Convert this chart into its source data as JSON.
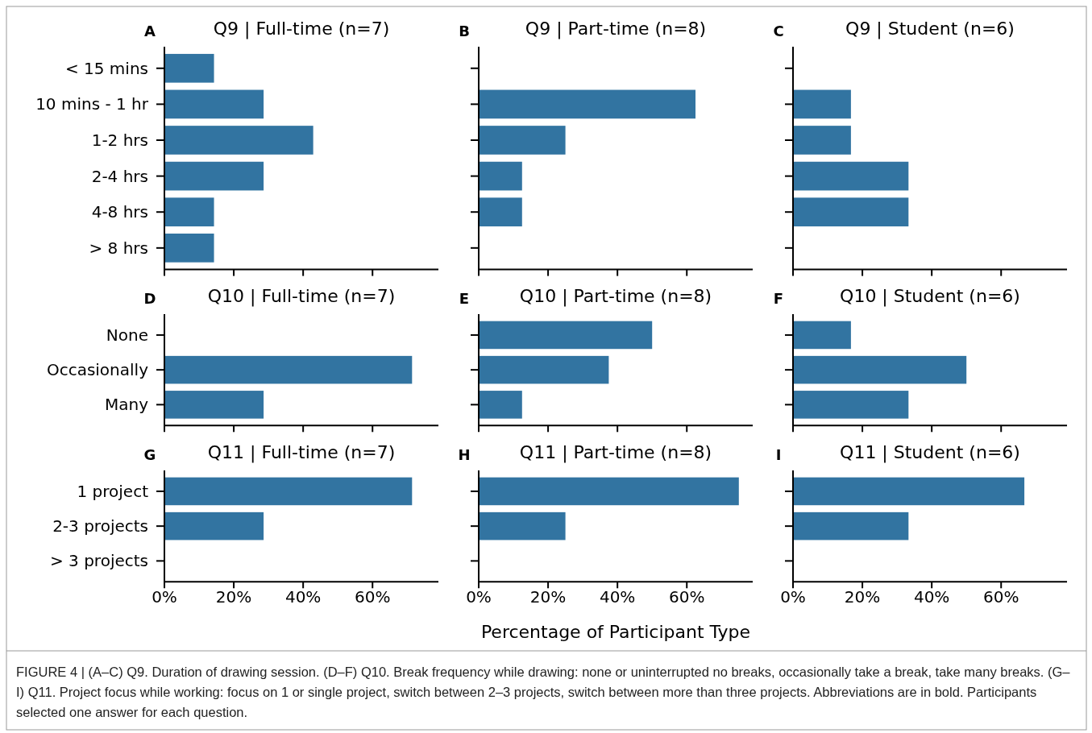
{
  "chart_data": [
    {
      "type": "bar",
      "orientation": "horizontal",
      "title": "Q9 | Full-time (n=7)",
      "annotations": [
        "A",
        "FIGURE 4 | (A–C) Q9. Duration of drawing session. (D–F) Q10. Break frequency while drawing: none or uninterrupted no breaks, occasionally take a break, take many breaks. (G–I) Q11. Project focus while working: focus on 1 or single project, switch between 2–3 projects, switch between more than three projects. Abbreviations are in bold. Participants selected one answer for each question."
      ],
      "categories": [
        "< 15 mins",
        "10 mins - 1 hr",
        "1-2 hrs",
        "2-4 hrs",
        "4-8 hrs",
        "> 8 hrs"
      ],
      "values": [
        14.3,
        28.6,
        42.9,
        28.6,
        14.3,
        14.3
      ],
      "color": "#3274a1",
      "xlim": [
        0,
        79
      ],
      "xticks": [
        {
          "value": 0,
          "label": null
        },
        {
          "value": 20,
          "label": null
        },
        {
          "value": 40,
          "label": null
        },
        {
          "value": 60,
          "label": null
        }
      ],
      "tick_labels": "y"
    },
    {
      "type": "bar",
      "orientation": "horizontal",
      "title": "Q9 | Part-time (n=8)",
      "annotations": [
        "B"
      ],
      "categories": [
        null,
        null,
        null,
        null,
        null,
        null
      ],
      "values": [
        0,
        62.5,
        25,
        12.5,
        12.5,
        0
      ],
      "color": "#3274a1",
      "xlim": [
        0,
        79
      ],
      "xticks": [
        {
          "value": 0,
          "label": null
        },
        {
          "value": 20,
          "label": null
        },
        {
          "value": 40,
          "label": null
        },
        {
          "value": 60,
          "label": null
        }
      ],
      "tick_labels": false
    },
    {
      "type": "bar",
      "orientation": "horizontal",
      "title": "Q9 | Student (n=6)",
      "annotations": [
        "C"
      ],
      "categories": [
        null,
        null,
        null,
        null,
        null,
        null
      ],
      "values": [
        0,
        16.7,
        16.7,
        33.3,
        33.3,
        0
      ],
      "color": "#3274a1",
      "xlim": [
        0,
        79
      ],
      "xticks": [
        {
          "value": 0,
          "label": null
        },
        {
          "value": 20,
          "label": null
        },
        {
          "value": 40,
          "label": null
        },
        {
          "value": 60,
          "label": null
        }
      ],
      "tick_labels": false
    },
    {
      "type": "bar",
      "orientation": "horizontal",
      "title": "Q10 | Full-time (n=7)",
      "annotations": [
        "D"
      ],
      "categories": [
        "None",
        "Occasionally",
        "Many"
      ],
      "values": [
        0,
        71.4,
        28.6
      ],
      "color": "#3274a1",
      "xlim": [
        0,
        79
      ],
      "xticks": [
        {
          "value": 0,
          "label": null
        },
        {
          "value": 20,
          "label": null
        },
        {
          "value": 40,
          "label": null
        },
        {
          "value": 60,
          "label": null
        }
      ],
      "tick_labels": "y"
    },
    {
      "type": "bar",
      "orientation": "horizontal",
      "title": "Q10 | Part-time (n=8)",
      "annotations": [
        "E"
      ],
      "categories": [
        null,
        null,
        null
      ],
      "values": [
        50,
        37.5,
        12.5
      ],
      "color": "#3274a1",
      "xlim": [
        0,
        79
      ],
      "xticks": [
        {
          "value": 0,
          "label": null
        },
        {
          "value": 20,
          "label": null
        },
        {
          "value": 40,
          "label": null
        },
        {
          "value": 60,
          "label": null
        }
      ],
      "tick_labels": false
    },
    {
      "type": "bar",
      "orientation": "horizontal",
      "title": "Q10 | Student (n=6)",
      "annotations": [
        "F"
      ],
      "categories": [
        null,
        null,
        null
      ],
      "values": [
        16.7,
        50,
        33.3
      ],
      "color": "#3274a1",
      "xlim": [
        0,
        79
      ],
      "xticks": [
        {
          "value": 0,
          "label": null
        },
        {
          "value": 20,
          "label": null
        },
        {
          "value": 40,
          "label": null
        },
        {
          "value": 60,
          "label": null
        }
      ],
      "tick_labels": false
    },
    {
      "type": "bar",
      "orientation": "horizontal",
      "title": "Q11 | Full-time (n=7)",
      "annotations": [
        "G"
      ],
      "categories": [
        "1 project",
        "2-3 projects",
        "> 3 projects"
      ],
      "values": [
        71.4,
        28.6,
        0
      ],
      "color": "#3274a1",
      "xlim": [
        0,
        79
      ],
      "xticks": [
        {
          "value": 0,
          "label": "0%"
        },
        {
          "value": 20,
          "label": "20%"
        },
        {
          "value": 40,
          "label": "40%"
        },
        {
          "value": 60,
          "label": "60%"
        }
      ]
    },
    {
      "type": "bar",
      "orientation": "horizontal",
      "title": "Q11 | Part-time (n=8)",
      "xlabel": "Percentage of Participant Type",
      "annotations": [
        "H"
      ],
      "categories": [
        null,
        null,
        null
      ],
      "values": [
        75,
        25,
        0
      ],
      "color": "#3274a1",
      "xlim": [
        0,
        79
      ],
      "xticks": [
        {
          "value": 0,
          "label": "0%"
        },
        {
          "value": 20,
          "label": "20%"
        },
        {
          "value": 40,
          "label": "40%"
        },
        {
          "value": 60,
          "label": "60%"
        }
      ],
      "tick_labels": "x"
    },
    {
      "type": "bar",
      "orientation": "horizontal",
      "title": "Q11 | Student (n=6)",
      "annotations": [
        "I"
      ],
      "categories": [
        null,
        null,
        null
      ],
      "values": [
        66.7,
        33.3,
        0
      ],
      "color": "#3274a1",
      "xlim": [
        0,
        79
      ],
      "xticks": [
        {
          "value": 0,
          "label": "0%"
        },
        {
          "value": 20,
          "label": "20%"
        },
        {
          "value": 40,
          "label": "40%"
        },
        {
          "value": 60,
          "label": "60%"
        }
      ],
      "tick_labels": "x"
    }
  ]
}
